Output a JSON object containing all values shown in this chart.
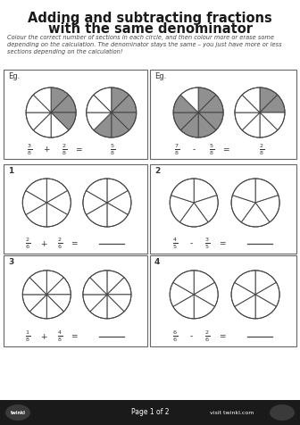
{
  "title_line1": "Adding and subtracting fractions",
  "title_line2": "with the same denominator",
  "subtitle": "Colour the correct number of sections in each circle, and then colour more or erase some\ndepending on the calculation. The denominator stays the same – you just have more or less\nsections depending on the calculation!",
  "bg_color": "#ffffff",
  "footer_bg": "#1a1a1a",
  "footer_text": "Page 1 of 2",
  "footer_right": "visit twinkl.com",
  "eg1_label": "Eg.",
  "eg2_label": "Eg.",
  "q_boxes": [
    {
      "num": "1",
      "eq_num1": "2",
      "eq_den1": "6",
      "op": "+",
      "eq_num2": "2",
      "eq_den2": "6",
      "slices": 6
    },
    {
      "num": "2",
      "eq_num1": "4",
      "eq_den1": "5",
      "op": "-",
      "eq_num2": "3",
      "eq_den2": "5",
      "slices": 5
    },
    {
      "num": "3",
      "eq_num1": "1",
      "eq_den1": "8",
      "op": "+",
      "eq_num2": "4",
      "eq_den2": "8",
      "slices": 8
    },
    {
      "num": "4",
      "eq_num1": "6",
      "eq_den1": "6",
      "op": "-",
      "eq_num2": "2",
      "eq_den2": "6",
      "slices": 6
    }
  ],
  "eg1": {
    "filled1": 3,
    "filled2": 5,
    "slices": 8,
    "eq_num1": "3",
    "eq_den1": "8",
    "op": "+",
    "eq_num2": "2",
    "eq_den2": "8",
    "ans_num": "5",
    "ans_den": "8"
  },
  "eg2": {
    "filled1": 7,
    "filled2": 2,
    "slices": 8,
    "eq_num1": "7",
    "eq_den1": "8",
    "op": "-",
    "eq_num2": "5",
    "eq_den2": "8",
    "ans_num": "2",
    "ans_den": "8"
  },
  "gray": "#909090",
  "edge_color": "#444444",
  "box_edge": "#666666",
  "title_color": "#1a1a1a",
  "sub_color": "#444444",
  "text_color": "#333333"
}
